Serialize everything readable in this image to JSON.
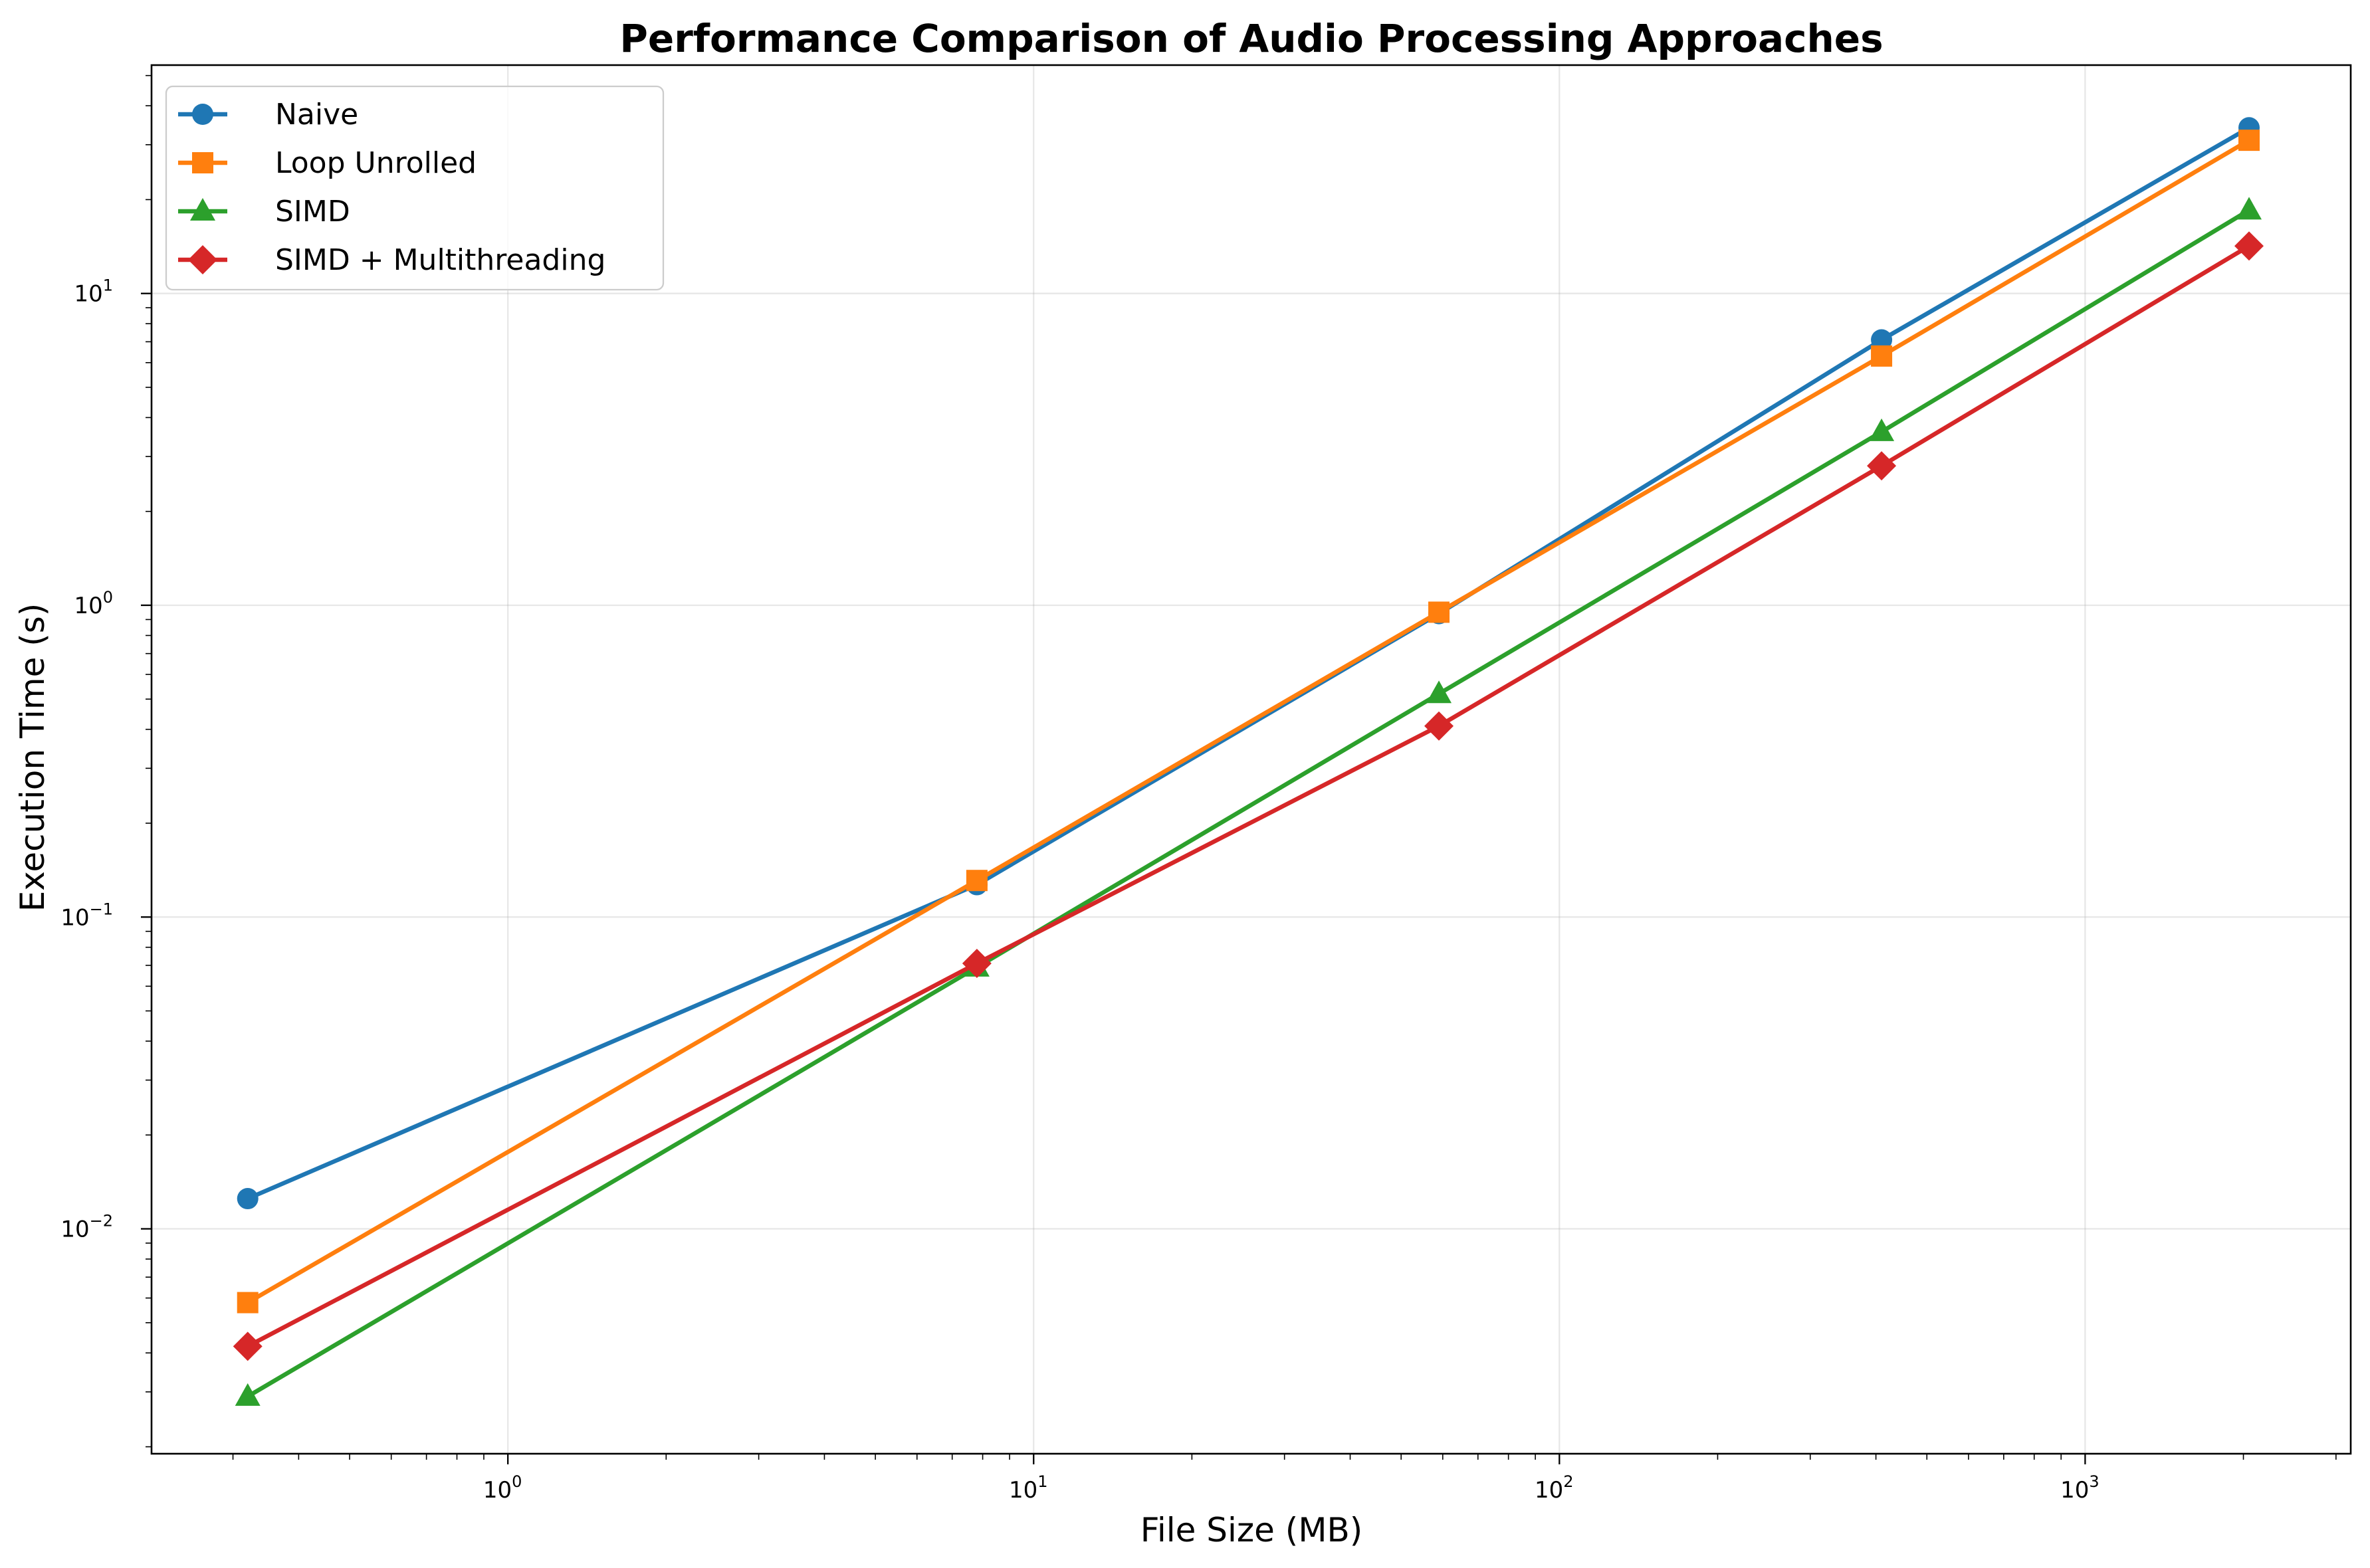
{
  "chart_data": {
    "type": "line",
    "title": "Performance Comparison of Audio Processing Approaches",
    "xlabel": "File Size (MB)",
    "ylabel": "Execution Time (s)",
    "xscale": "log",
    "yscale": "log",
    "xlim": [
      0.21,
      3200
    ],
    "ylim": [
      0.0019,
      54
    ],
    "grid": true,
    "legend_position": "top-left",
    "x_ticks": [
      {
        "value": 1,
        "base": "10",
        "exp": "0"
      },
      {
        "value": 10,
        "base": "10",
        "exp": "1"
      },
      {
        "value": 100,
        "base": "10",
        "exp": "2"
      },
      {
        "value": 1000,
        "base": "10",
        "exp": "3"
      }
    ],
    "y_ticks": [
      {
        "value": 0.01,
        "base": "10",
        "exp": "−2"
      },
      {
        "value": 0.1,
        "base": "10",
        "exp": "−1"
      },
      {
        "value": 1,
        "base": "10",
        "exp": "0"
      },
      {
        "value": 10,
        "base": "10",
        "exp": "1"
      }
    ],
    "x": [
      0.32,
      7.8,
      59,
      410,
      2050
    ],
    "series": [
      {
        "name": "Naive",
        "color": "#1f77b4",
        "marker": "circle",
        "values": [
          0.0125,
          0.127,
          0.94,
          7.1,
          34
        ]
      },
      {
        "name": "Loop Unrolled",
        "color": "#ff7f0e",
        "marker": "square",
        "values": [
          0.0058,
          0.131,
          0.95,
          6.3,
          31
        ]
      },
      {
        "name": "SIMD",
        "color": "#2ca02c",
        "marker": "triangle",
        "values": [
          0.0029,
          0.069,
          0.52,
          3.6,
          18.5
        ]
      },
      {
        "name": "SIMD + Multithreading",
        "color": "#d62728",
        "marker": "diamond",
        "values": [
          0.0042,
          0.071,
          0.41,
          2.8,
          14.2
        ]
      }
    ]
  }
}
